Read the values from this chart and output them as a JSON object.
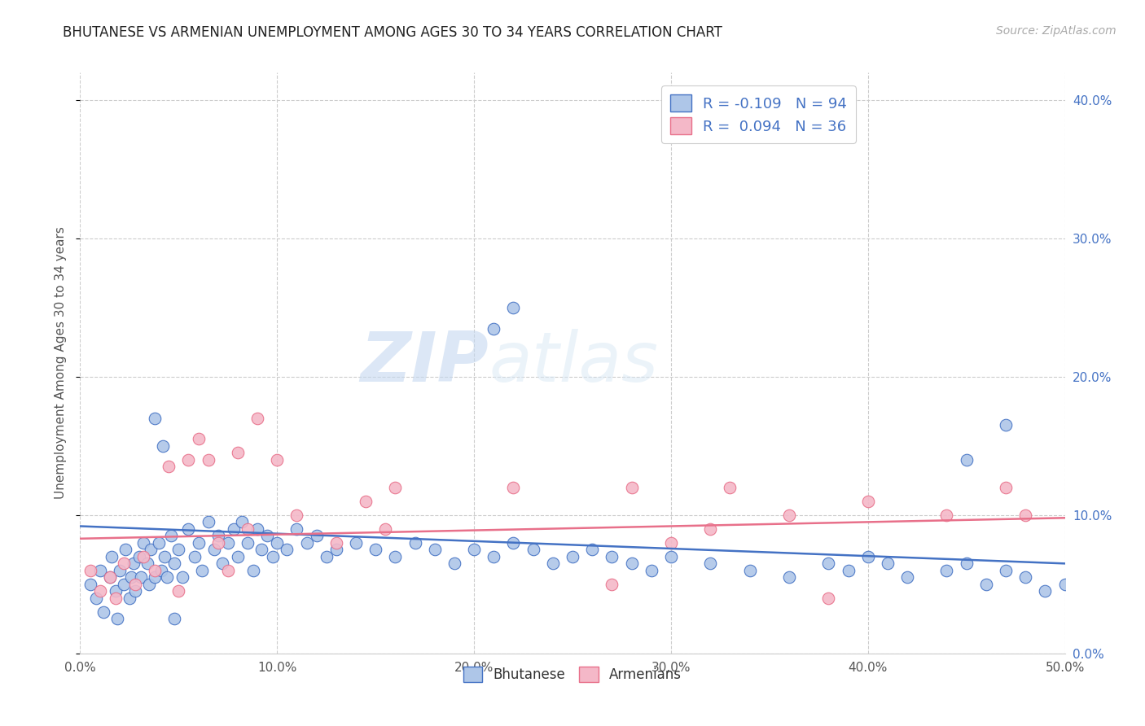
{
  "title": "BHUTANESE VS ARMENIAN UNEMPLOYMENT AMONG AGES 30 TO 34 YEARS CORRELATION CHART",
  "source": "Source: ZipAtlas.com",
  "ylabel": "Unemployment Among Ages 30 to 34 years",
  "xlim": [
    0.0,
    0.5
  ],
  "ylim": [
    0.0,
    0.42
  ],
  "xticks": [
    0.0,
    0.1,
    0.2,
    0.3,
    0.4,
    0.5
  ],
  "yticks": [
    0.0,
    0.1,
    0.2,
    0.3,
    0.4
  ],
  "grid_color": "#cccccc",
  "background_color": "#ffffff",
  "bhutanese_color": "#aec6e8",
  "armenian_color": "#f4b8c8",
  "bhutanese_line_color": "#4472c4",
  "armenian_line_color": "#e8708a",
  "legend_R_bhutanese": "R = -0.109   N = 94",
  "legend_R_armenian": "R =  0.094   N = 36",
  "watermark_zip": "ZIP",
  "watermark_atlas": "atlas",
  "bhu_x": [
    0.005,
    0.008,
    0.01,
    0.012,
    0.015,
    0.016,
    0.018,
    0.019,
    0.02,
    0.022,
    0.023,
    0.025,
    0.026,
    0.027,
    0.028,
    0.03,
    0.031,
    0.032,
    0.034,
    0.035,
    0.036,
    0.038,
    0.04,
    0.041,
    0.043,
    0.044,
    0.046,
    0.048,
    0.05,
    0.052,
    0.055,
    0.058,
    0.06,
    0.062,
    0.065,
    0.068,
    0.07,
    0.072,
    0.075,
    0.078,
    0.08,
    0.082,
    0.085,
    0.088,
    0.09,
    0.092,
    0.095,
    0.098,
    0.1,
    0.105,
    0.11,
    0.115,
    0.12,
    0.125,
    0.13,
    0.14,
    0.15,
    0.16,
    0.17,
    0.18,
    0.19,
    0.2,
    0.21,
    0.22,
    0.23,
    0.24,
    0.25,
    0.26,
    0.27,
    0.28,
    0.29,
    0.3,
    0.32,
    0.34,
    0.36,
    0.38,
    0.39,
    0.4,
    0.41,
    0.42,
    0.44,
    0.45,
    0.46,
    0.47,
    0.48,
    0.49,
    0.5,
    0.038,
    0.042,
    0.048,
    0.21,
    0.22,
    0.45,
    0.47
  ],
  "bhu_y": [
    0.05,
    0.04,
    0.06,
    0.03,
    0.055,
    0.07,
    0.045,
    0.025,
    0.06,
    0.05,
    0.075,
    0.04,
    0.055,
    0.065,
    0.045,
    0.07,
    0.055,
    0.08,
    0.065,
    0.05,
    0.075,
    0.055,
    0.08,
    0.06,
    0.07,
    0.055,
    0.085,
    0.065,
    0.075,
    0.055,
    0.09,
    0.07,
    0.08,
    0.06,
    0.095,
    0.075,
    0.085,
    0.065,
    0.08,
    0.09,
    0.07,
    0.095,
    0.08,
    0.06,
    0.09,
    0.075,
    0.085,
    0.07,
    0.08,
    0.075,
    0.09,
    0.08,
    0.085,
    0.07,
    0.075,
    0.08,
    0.075,
    0.07,
    0.08,
    0.075,
    0.065,
    0.075,
    0.07,
    0.08,
    0.075,
    0.065,
    0.07,
    0.075,
    0.07,
    0.065,
    0.06,
    0.07,
    0.065,
    0.06,
    0.055,
    0.065,
    0.06,
    0.07,
    0.065,
    0.055,
    0.06,
    0.065,
    0.05,
    0.06,
    0.055,
    0.045,
    0.05,
    0.17,
    0.15,
    0.025,
    0.235,
    0.25,
    0.14,
    0.165
  ],
  "arm_x": [
    0.005,
    0.01,
    0.015,
    0.018,
    0.022,
    0.028,
    0.032,
    0.038,
    0.045,
    0.05,
    0.055,
    0.06,
    0.065,
    0.07,
    0.075,
    0.08,
    0.085,
    0.09,
    0.1,
    0.11,
    0.13,
    0.145,
    0.155,
    0.16,
    0.22,
    0.27,
    0.28,
    0.3,
    0.32,
    0.33,
    0.36,
    0.38,
    0.4,
    0.44,
    0.47,
    0.48
  ],
  "arm_y": [
    0.06,
    0.045,
    0.055,
    0.04,
    0.065,
    0.05,
    0.07,
    0.06,
    0.135,
    0.045,
    0.14,
    0.155,
    0.14,
    0.08,
    0.06,
    0.145,
    0.09,
    0.17,
    0.14,
    0.1,
    0.08,
    0.11,
    0.09,
    0.12,
    0.12,
    0.05,
    0.12,
    0.08,
    0.09,
    0.12,
    0.1,
    0.04,
    0.11,
    0.1,
    0.12,
    0.1
  ],
  "bhu_trend_x": [
    0.0,
    0.5
  ],
  "bhu_trend_y": [
    0.092,
    0.065
  ],
  "arm_trend_x": [
    0.0,
    0.5
  ],
  "arm_trend_y": [
    0.083,
    0.098
  ]
}
